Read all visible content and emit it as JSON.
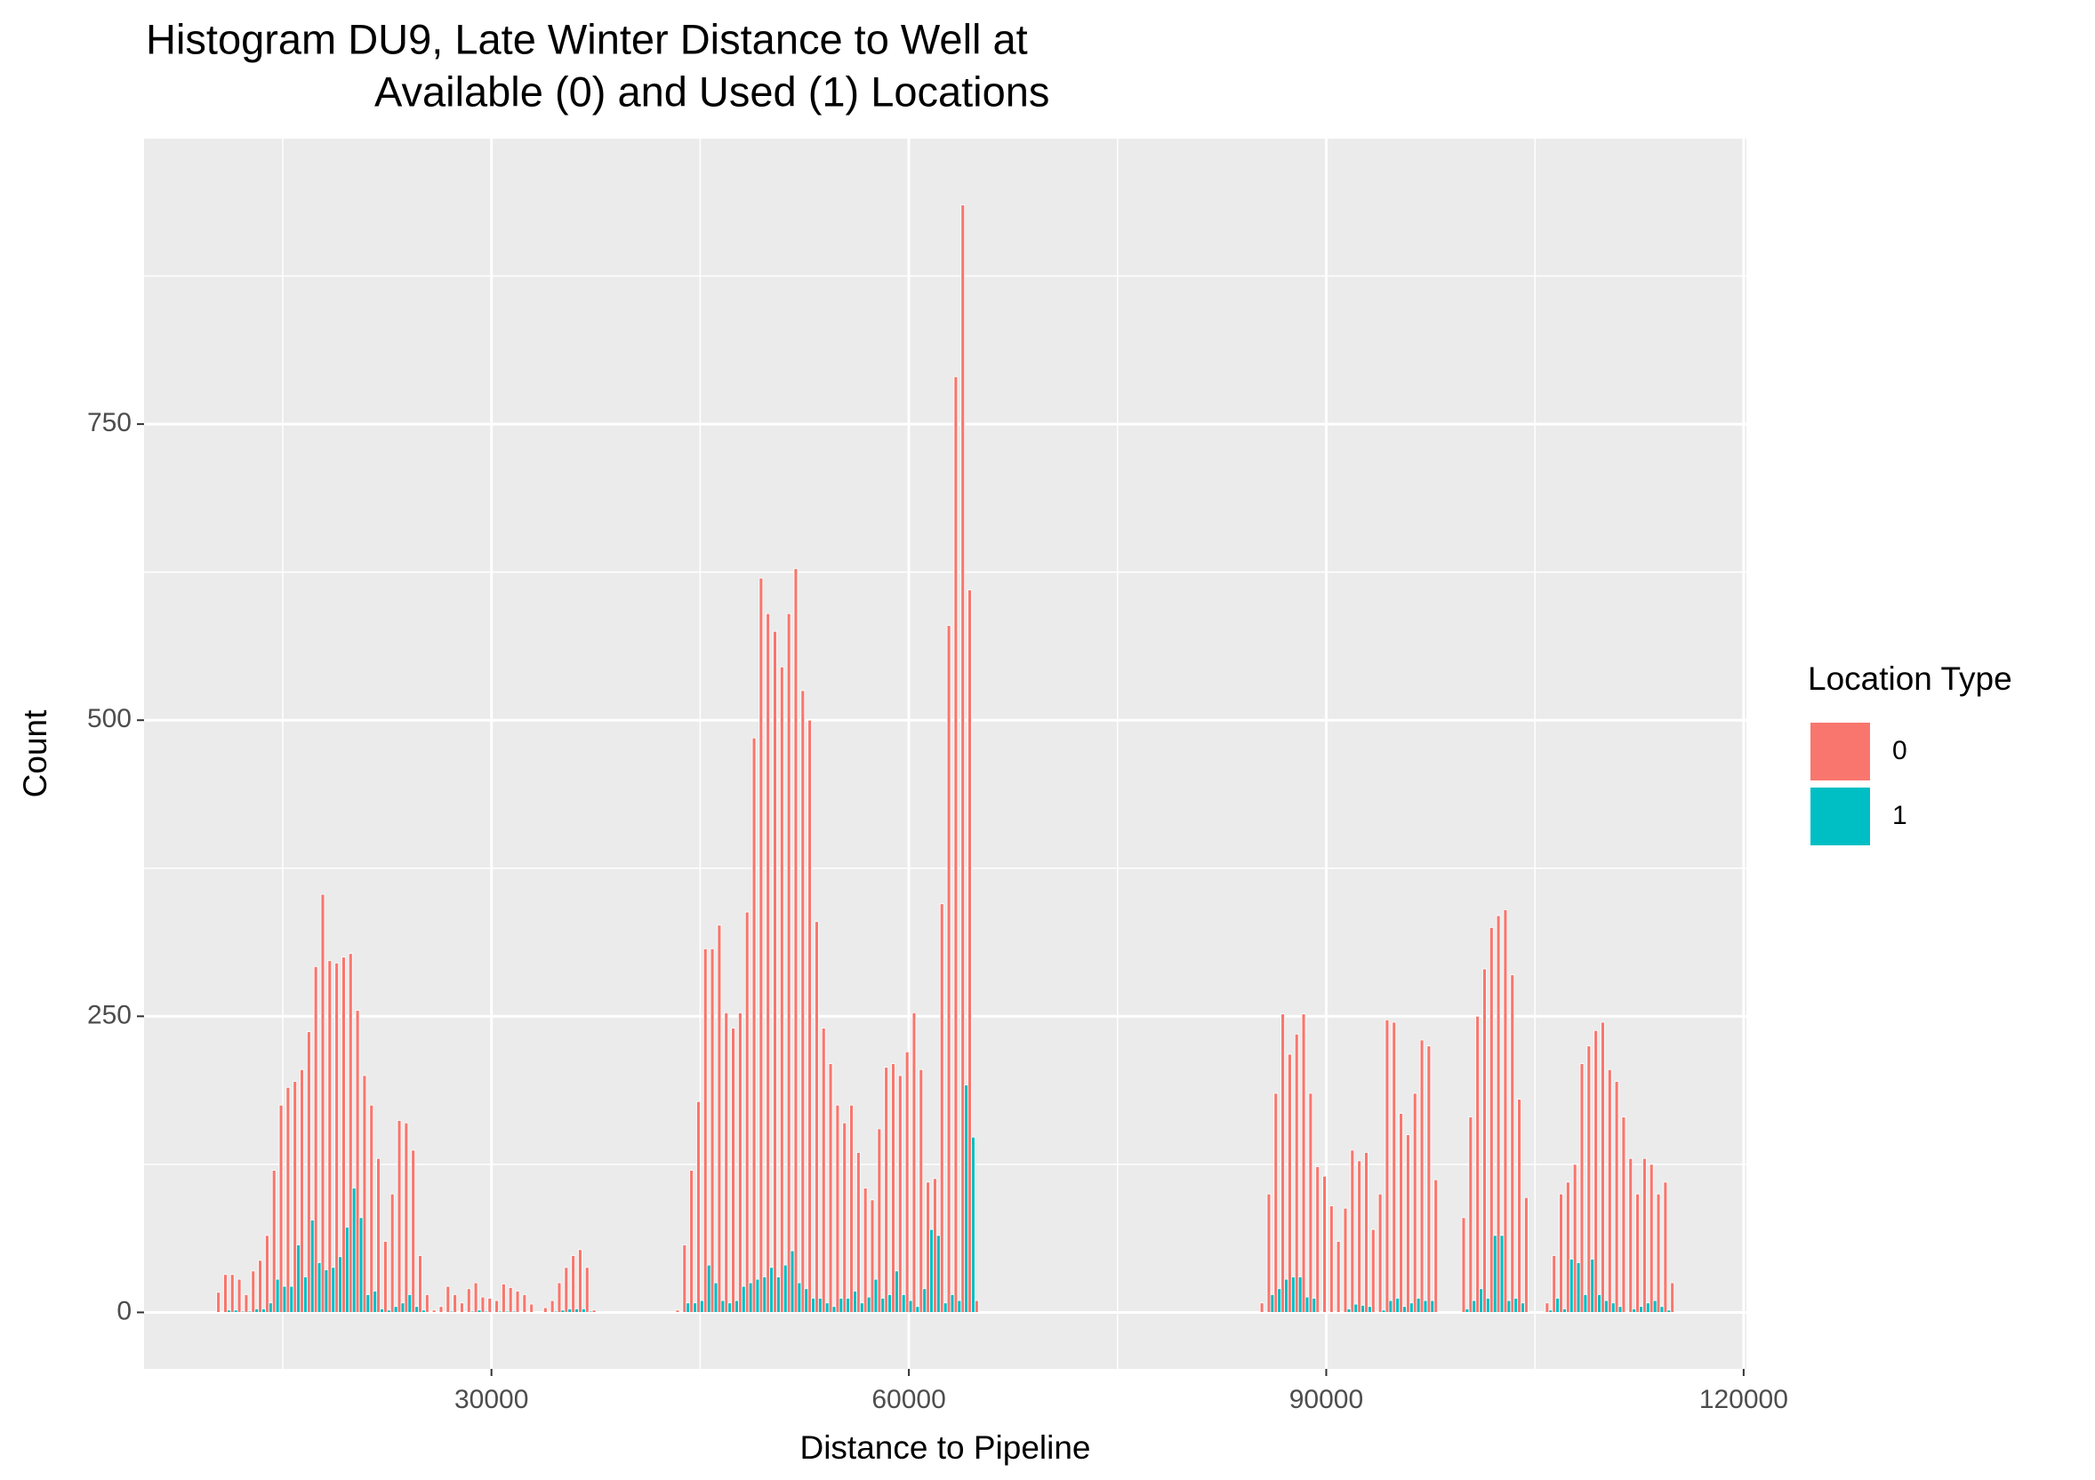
{
  "chart_data": {
    "type": "histogram",
    "title": [
      "Histogram DU9, Late Winter Distance to Well at",
      "Available (0) and Used (1) Locations"
    ],
    "x_label": "Distance to Pipeline",
    "y_label": "Count",
    "legend_title": "Location Type",
    "legend": "right",
    "grid": true,
    "xlim": [
      5030,
      120200
    ],
    "ylim": [
      -47.7,
      991
    ],
    "xticks": [
      30000,
      60000,
      90000,
      120000
    ],
    "yticks": [
      0,
      250,
      500,
      750
    ],
    "bins": [
      10250,
      10750,
      11250,
      11750,
      12250,
      12750,
      13250,
      13750,
      14250,
      14750,
      15250,
      15750,
      16250,
      16750,
      17250,
      17750,
      18250,
      18750,
      19250,
      19750,
      20250,
      20750,
      21250,
      21750,
      22250,
      22750,
      23250,
      23750,
      24250,
      24750,
      25250,
      25750,
      26250,
      26750,
      27250,
      27750,
      28250,
      28750,
      29250,
      29750,
      30250,
      30750,
      31250,
      31750,
      32250,
      32750,
      33250,
      33750,
      34250,
      34750,
      35250,
      35750,
      36250,
      36750,
      37250,
      37750,
      38250,
      38750,
      39250,
      39750,
      40250,
      40750,
      41250,
      41750,
      42250,
      42750,
      43250,
      43750,
      44250,
      44750,
      45250,
      45750,
      46250,
      46750,
      47250,
      47750,
      48250,
      48750,
      49250,
      49750,
      50250,
      50750,
      51250,
      51750,
      52250,
      52750,
      53250,
      53750,
      54250,
      54750,
      55250,
      55750,
      56250,
      56750,
      57250,
      57750,
      58250,
      58750,
      59250,
      59750,
      60250,
      60750,
      61250,
      61750,
      62250,
      62750,
      63250,
      63750,
      64250,
      64750,
      65250,
      65750,
      66250,
      66750,
      67250,
      67750,
      68250,
      68750,
      69250,
      69750,
      70250,
      70750,
      71250,
      71750,
      72250,
      72750,
      73250,
      73750,
      74250,
      74750,
      75250,
      75750,
      76250,
      76750,
      77250,
      77750,
      78250,
      78750,
      79250,
      79750,
      80250,
      80750,
      81250,
      81750,
      82250,
      82750,
      83250,
      83750,
      84250,
      84750,
      85250,
      85750,
      86250,
      86750,
      87250,
      87750,
      88250,
      88750,
      89250,
      89750,
      90250,
      90750,
      91250,
      91750,
      92250,
      92750,
      93250,
      93750,
      94250,
      94750,
      95250,
      95750,
      96250,
      96750,
      97250,
      97750,
      98250,
      98750,
      99250,
      99750,
      100250,
      100750,
      101250,
      101750,
      102250,
      102750,
      103250,
      103750,
      104250,
      104750,
      105250,
      105750,
      106250,
      106750,
      107250,
      107750,
      108250,
      108750,
      109250,
      109750,
      110250,
      110750,
      111250,
      111750,
      112250,
      112750,
      113250,
      113750,
      114250,
      114750,
      115250
    ],
    "series": [
      {
        "name": "0",
        "color": "#F8766D",
        "values": [
          17,
          32,
          32,
          28,
          15,
          35,
          44,
          65,
          120,
          175,
          190,
          195,
          205,
          237,
          292,
          353,
          297,
          295,
          300,
          303,
          255,
          200,
          175,
          130,
          60,
          100,
          162,
          160,
          137,
          48,
          15,
          2,
          5,
          22,
          15,
          8,
          20,
          25,
          13,
          12,
          10,
          24,
          21,
          18,
          15,
          7,
          0,
          4,
          10,
          25,
          38,
          48,
          53,
          38,
          2,
          0,
          0,
          0,
          0,
          0,
          0,
          0,
          0,
          0,
          0,
          0,
          2,
          57,
          120,
          178,
          307,
          307,
          327,
          253,
          240,
          253,
          338,
          485,
          620,
          590,
          575,
          545,
          590,
          628,
          525,
          500,
          330,
          240,
          210,
          175,
          160,
          175,
          135,
          105,
          95,
          155,
          207,
          210,
          200,
          220,
          253,
          205,
          110,
          113,
          345,
          580,
          790,
          935,
          610,
          10,
          0,
          0,
          0,
          0,
          0,
          0,
          0,
          0,
          0,
          0,
          0,
          0,
          0,
          0,
          0,
          0,
          0,
          0,
          0,
          0,
          0,
          0,
          0,
          0,
          0,
          0,
          0,
          0,
          0,
          0,
          0,
          0,
          0,
          0,
          0,
          0,
          0,
          0,
          0,
          0,
          8,
          100,
          185,
          252,
          218,
          235,
          252,
          185,
          123,
          115,
          90,
          60,
          88,
          137,
          128,
          135,
          70,
          100,
          247,
          245,
          168,
          150,
          185,
          230,
          225,
          112,
          0,
          0,
          0,
          80,
          165,
          250,
          290,
          325,
          335,
          340,
          285,
          180,
          97,
          0,
          0,
          8,
          48,
          100,
          110,
          125,
          210,
          225,
          238,
          245,
          205,
          195,
          165,
          130,
          100,
          130,
          125,
          100,
          110,
          25
        ]
      },
      {
        "name": "1",
        "color": "#00BFC4",
        "values": [
          0,
          2,
          2,
          1,
          1,
          3,
          3,
          8,
          28,
          22,
          22,
          57,
          30,
          78,
          42,
          36,
          38,
          47,
          72,
          105,
          80,
          15,
          18,
          3,
          2,
          5,
          8,
          15,
          5,
          2,
          0,
          0,
          0,
          1,
          0,
          0,
          1,
          2,
          1,
          0,
          1,
          1,
          1,
          0,
          0,
          0,
          0,
          0,
          1,
          2,
          3,
          3,
          3,
          1,
          0,
          0,
          0,
          0,
          0,
          0,
          0,
          0,
          0,
          0,
          0,
          0,
          0,
          8,
          8,
          10,
          40,
          25,
          10,
          8,
          10,
          22,
          25,
          28,
          30,
          38,
          30,
          40,
          52,
          25,
          20,
          12,
          12,
          8,
          5,
          12,
          12,
          18,
          8,
          13,
          28,
          12,
          15,
          35,
          15,
          10,
          5,
          20,
          70,
          65,
          8,
          15,
          10,
          192,
          148,
          0,
          0,
          0,
          0,
          0,
          0,
          0,
          0,
          0,
          0,
          0,
          0,
          0,
          0,
          0,
          0,
          0,
          0,
          0,
          0,
          0,
          0,
          0,
          0,
          0,
          0,
          0,
          0,
          0,
          0,
          0,
          0,
          0,
          0,
          0,
          0,
          0,
          0,
          0,
          0,
          0,
          0,
          15,
          20,
          28,
          30,
          30,
          13,
          12,
          0,
          0,
          0,
          0,
          3,
          7,
          6,
          5,
          0,
          2,
          10,
          12,
          5,
          8,
          12,
          10,
          10,
          0,
          0,
          0,
          0,
          3,
          10,
          20,
          12,
          65,
          65,
          10,
          12,
          8,
          0,
          0,
          0,
          2,
          12,
          3,
          45,
          42,
          15,
          45,
          15,
          10,
          8,
          5,
          0,
          3,
          5,
          8,
          10,
          5,
          2,
          0
        ]
      }
    ]
  }
}
